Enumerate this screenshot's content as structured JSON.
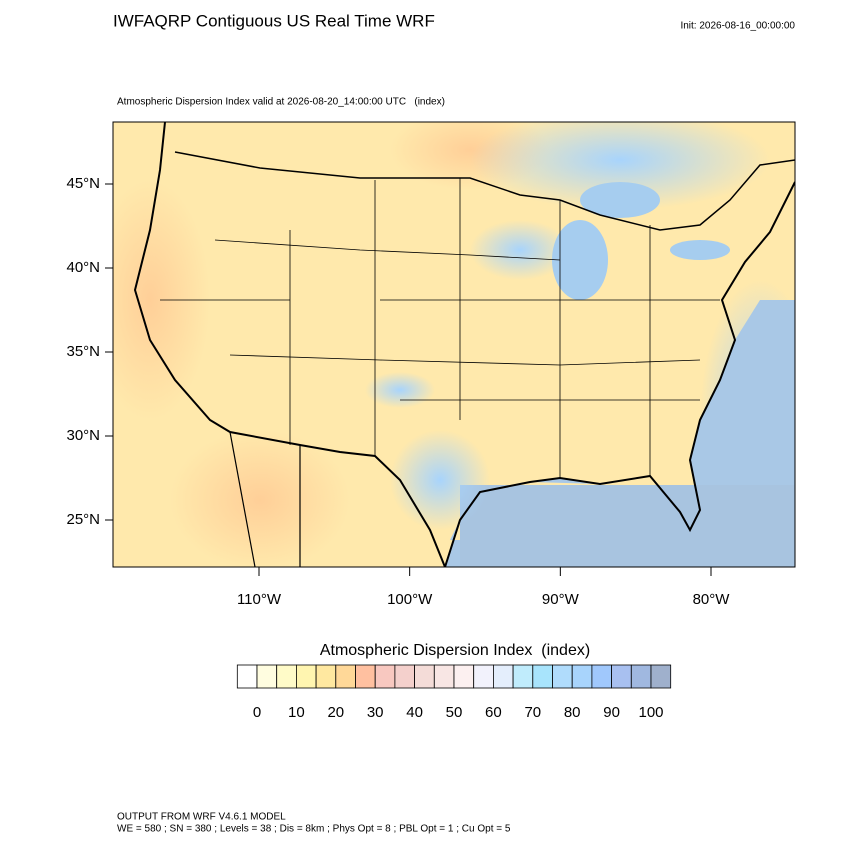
{
  "header": {
    "title": "IWFAQRP Contiguous US Real Time WRF",
    "init": "Init: 2026-08-16_00:00:00",
    "subtitle": "Atmospheric Dispersion Index valid at 2026-08-20_14:00:00 UTC   (index)"
  },
  "map": {
    "lat_ticks": [
      {
        "value": 45,
        "label": "45°N"
      },
      {
        "value": 40,
        "label": "40°N"
      },
      {
        "value": 35,
        "label": "35°N"
      },
      {
        "value": 30,
        "label": "30°N"
      },
      {
        "value": 25,
        "label": "25°N"
      }
    ],
    "lon_ticks": [
      {
        "value": -110,
        "label": "110°W"
      },
      {
        "value": -100,
        "label": "100°W"
      },
      {
        "value": -90,
        "label": "90°W"
      },
      {
        "value": -80,
        "label": "80°W"
      }
    ]
  },
  "colorbar": {
    "title": "Atmospheric Dispersion Index  (index)",
    "ticks": [
      0,
      10,
      20,
      30,
      40,
      50,
      60,
      70,
      80,
      90,
      100
    ],
    "levels": [
      0,
      5,
      10,
      15,
      20,
      25,
      30,
      35,
      40,
      45,
      50,
      55,
      60,
      65,
      70,
      75,
      80,
      85,
      90,
      95,
      100
    ],
    "colors": [
      "#ffffff",
      "#fffde0",
      "#fffbc8",
      "#fff5b0",
      "#ffe8a0",
      "#ffd898",
      "#ffc0a0",
      "#f8c8c0",
      "#f4d0cc",
      "#f4dcd8",
      "#f8e6e4",
      "#fcf0f0",
      "#f2f2fc",
      "#e4eefc",
      "#c0ecfc",
      "#a8e4fc",
      "#b0dcfc",
      "#a8d4fc",
      "#a0c8fc",
      "#a8c0f0",
      "#a0b8e0",
      "#9fb0cc"
    ]
  },
  "footer": {
    "line1": "OUTPUT FROM WRF V4.6.1 MODEL",
    "line2": "WE = 580 ; SN = 380 ; Levels = 38 ; Dis = 8km ; Phys Opt = 8 ; PBL Opt = 1 ; Cu Opt = 5"
  }
}
